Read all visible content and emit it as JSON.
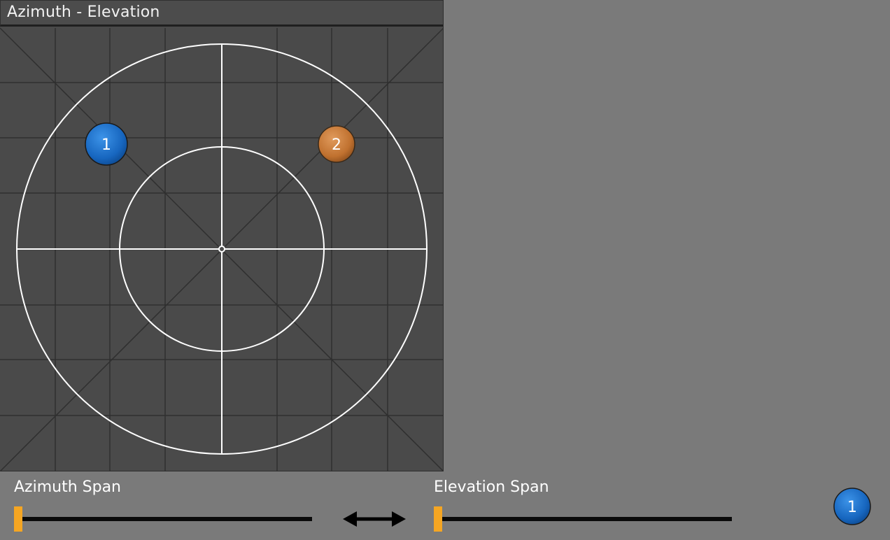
{
  "panel": {
    "title": "Azimuth - Elevation"
  },
  "markers": [
    {
      "label": "1",
      "color": "#1e6fc8"
    },
    {
      "label": "2",
      "color": "#c77a3a"
    }
  ],
  "controls": {
    "azimuth_span_label": "Azimuth Span",
    "elevation_span_label": "Elevation Span",
    "azimuth_span_value": 0,
    "elevation_span_value": 0,
    "link_icon": "double-arrow-icon",
    "thumb_color": "#f5a623"
  },
  "selected_badge": {
    "label": "1",
    "color": "#1e6fc8"
  }
}
